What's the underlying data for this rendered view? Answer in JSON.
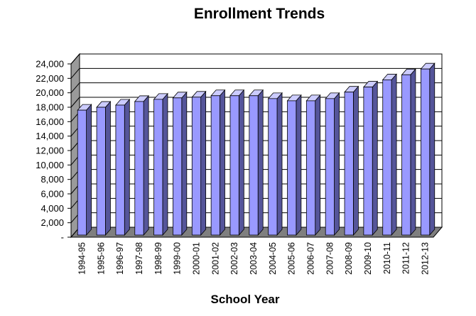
{
  "chart_data": {
    "type": "bar",
    "title": "Enrollment Trends",
    "xlabel": "School Year",
    "ylabel": "",
    "ylim": [
      0,
      24000
    ],
    "yticks": [
      0,
      2000,
      4000,
      6000,
      8000,
      10000,
      12000,
      14000,
      16000,
      18000,
      20000,
      22000,
      24000
    ],
    "ytick_labels": [
      "-",
      "2,000",
      "4,000",
      "6,000",
      "8,000",
      "10,000",
      "12,000",
      "14,000",
      "16,000",
      "18,000",
      "20,000",
      "22,000",
      "24,000"
    ],
    "categories": [
      "1994-95",
      "1995-96",
      "1996-97",
      "1997-98",
      "1998-99",
      "1999-00",
      "2000-01",
      "2001-02",
      "2002-03",
      "2003-04",
      "2004-05",
      "2005-06",
      "2006-07",
      "2007-08",
      "2008-09",
      "2009-10",
      "2010-11",
      "2011-12",
      "2012-13"
    ],
    "values": [
      17300,
      17700,
      18000,
      18500,
      18800,
      19000,
      19100,
      19300,
      19300,
      19300,
      18900,
      18600,
      18600,
      18900,
      19800,
      20500,
      21500,
      22200,
      23000
    ],
    "grid": true,
    "legend": "none",
    "colors": {
      "bar_front": "#9999ff",
      "bar_side": "#55559a",
      "bar_top": "#ccccff",
      "wall": "#ffffff",
      "side_wall": "#9a9a9a",
      "floor": "#7f7f7f"
    }
  }
}
